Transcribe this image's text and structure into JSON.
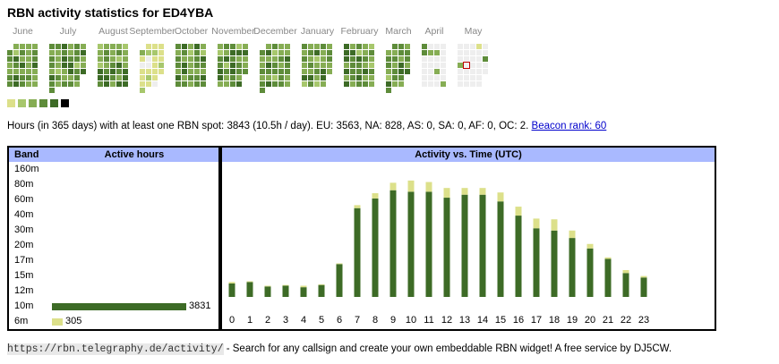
{
  "page": {
    "title": "RBN activity statistics for ED4YBA"
  },
  "calendar": {
    "months": [
      "June",
      "July",
      "August",
      "September",
      "October",
      "November",
      "December",
      "January",
      "February",
      "March",
      "April",
      "May"
    ],
    "month_columns": [
      5,
      6,
      5,
      4,
      5,
      5,
      5,
      5,
      5,
      4,
      4,
      5
    ],
    "colors": {
      "none": "#eeeeee",
      "l1": "#dce08a",
      "l2": "#a7c76c",
      "l3": "#86ad54",
      "l4": "#5e8c3a",
      "l5": "#3d6b26",
      "l6": "#000000",
      "today": "#c00000"
    },
    "legend": [
      "#dce08a",
      "#a7c76c",
      "#86ad54",
      "#5e8c3a",
      "#3d6b26",
      "#000000"
    ]
  },
  "stats": {
    "summary": "Hours (in 365 days) with at least one RBN spot: 3843 (10.5h / day). EU: 3563, NA: 828, AS: 0, SA: 0, AF: 0, OC: 2.",
    "beacon_rank_label": "Beacon rank: 60"
  },
  "band_table": {
    "header_band": "Band",
    "header_active": "Active hours",
    "max_hours": 3831,
    "rows": [
      {
        "band": "160m",
        "hours": null,
        "label": "",
        "color": "#3d6b26"
      },
      {
        "band": "80m",
        "hours": null,
        "label": "",
        "color": "#3d6b26"
      },
      {
        "band": "60m",
        "hours": null,
        "label": "",
        "color": "#3d6b26"
      },
      {
        "band": "40m",
        "hours": null,
        "label": "",
        "color": "#3d6b26"
      },
      {
        "band": "30m",
        "hours": null,
        "label": "",
        "color": "#3d6b26"
      },
      {
        "band": "20m",
        "hours": null,
        "label": "",
        "color": "#3d6b26"
      },
      {
        "band": "17m",
        "hours": null,
        "label": "",
        "color": "#3d6b26"
      },
      {
        "band": "15m",
        "hours": null,
        "label": "",
        "color": "#3d6b26"
      },
      {
        "band": "12m",
        "hours": null,
        "label": "",
        "color": "#3d6b26"
      },
      {
        "band": "10m",
        "hours": 3831,
        "label": "3831",
        "color": "#3d6b26"
      },
      {
        "band": "6m",
        "hours": 305,
        "label": "305",
        "color": "#dce08a"
      }
    ]
  },
  "chart_data": {
    "type": "bar",
    "title": "Activity vs. Time (UTC)",
    "categories": [
      "0",
      "1",
      "2",
      "3",
      "4",
      "5",
      "6",
      "7",
      "8",
      "9",
      "10",
      "11",
      "12",
      "13",
      "14",
      "15",
      "16",
      "17",
      "18",
      "19",
      "20",
      "21",
      "22",
      "23"
    ],
    "series": [
      {
        "color": "#3d6b26",
        "values": [
          18,
          20,
          14,
          15,
          13,
          16,
          44,
          119,
          132,
          143,
          141,
          141,
          133,
          137,
          137,
          128,
          109,
          92,
          89,
          79,
          65,
          51,
          32,
          26
        ]
      },
      {
        "color": "#dce08a",
        "values": [
          2,
          1,
          1,
          1,
          2,
          1,
          1,
          4,
          7,
          10,
          15,
          13,
          13,
          9,
          9,
          12,
          12,
          13,
          15,
          10,
          6,
          2,
          4,
          2
        ]
      }
    ],
    "ylim": [
      0,
      175
    ]
  },
  "footer": {
    "url": "https://rbn.telegraphy.de/activity/",
    "text": " - Search for any callsign and create your own embeddable RBN widget! A free service by DJ5CW."
  }
}
